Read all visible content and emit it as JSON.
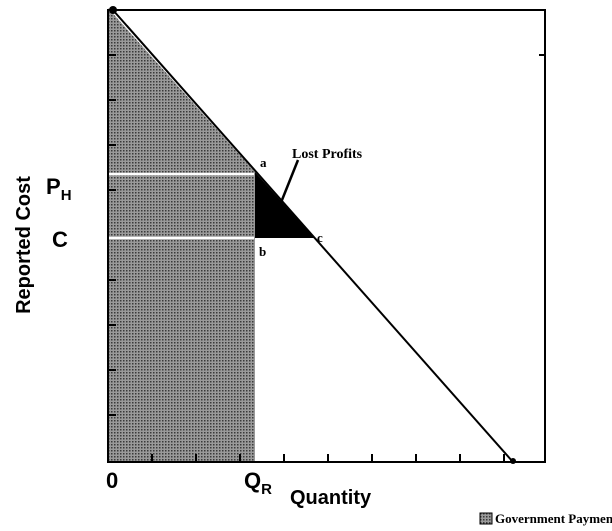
{
  "axes": {
    "y_label": "Reported Cost",
    "x_label": "Quantity"
  },
  "labels": {
    "p": "P",
    "p_sub": "H",
    "c": "C",
    "origin": "0",
    "q": "Q",
    "q_sub": "R",
    "lost_profits": "Lost Profits",
    "point_a": "a",
    "point_b": "b",
    "point_c": "c"
  },
  "legend": "Government Payment"
}
